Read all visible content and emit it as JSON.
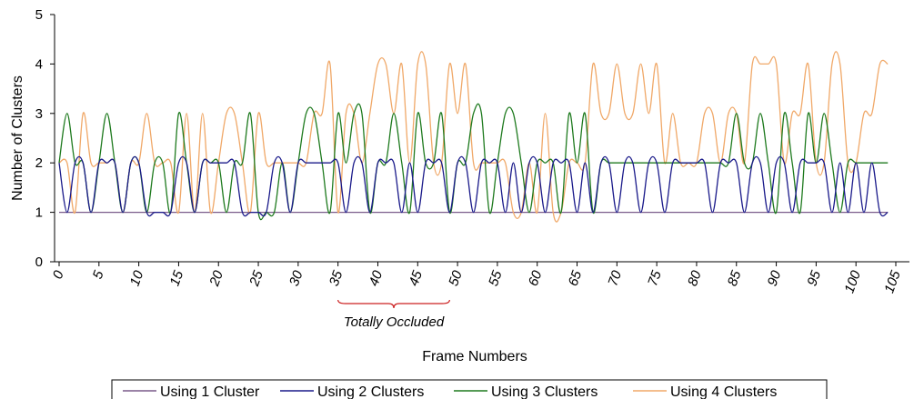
{
  "chart_data": {
    "type": "line",
    "title": "",
    "xlabel": "Frame Numbers",
    "ylabel": "Number of Clusters",
    "xlim": [
      0,
      105
    ],
    "ylim": [
      0,
      5
    ],
    "x_ticks": [
      "0",
      "5",
      "10",
      "15",
      "20",
      "25",
      "30",
      "35",
      "40",
      "45",
      "50",
      "55",
      "60",
      "65",
      "70",
      "75",
      "80",
      "85",
      "90",
      "95",
      "100",
      "105"
    ],
    "y_ticks": [
      "0",
      "1",
      "2",
      "3",
      "4",
      "5"
    ],
    "grid": false,
    "legend_position": "bottom",
    "annotation": {
      "text": "Totally Occluded",
      "x_start": 35,
      "x_end": 49
    },
    "x": [
      0,
      1,
      2,
      3,
      4,
      5,
      6,
      7,
      8,
      9,
      10,
      11,
      12,
      13,
      14,
      15,
      16,
      17,
      18,
      19,
      20,
      21,
      22,
      23,
      24,
      25,
      26,
      27,
      28,
      29,
      30,
      31,
      32,
      33,
      34,
      35,
      36,
      37,
      38,
      39,
      40,
      41,
      42,
      43,
      44,
      45,
      46,
      47,
      48,
      49,
      50,
      51,
      52,
      53,
      54,
      55,
      56,
      57,
      58,
      59,
      60,
      61,
      62,
      63,
      64,
      65,
      66,
      67,
      68,
      69,
      70,
      71,
      72,
      73,
      74,
      75,
      76,
      77,
      78,
      79,
      80,
      81,
      82,
      83,
      84,
      85,
      86,
      87,
      88,
      89,
      90,
      91,
      92,
      93,
      94,
      95,
      96,
      97,
      98,
      99,
      100,
      101,
      102,
      103,
      104
    ],
    "series": [
      {
        "name": "Using 1 Cluster",
        "color": "#7a5a8a",
        "values": [
          1,
          1,
          1,
          1,
          1,
          1,
          1,
          1,
          1,
          1,
          1,
          1,
          1,
          1,
          1,
          1,
          1,
          1,
          1,
          1,
          1,
          1,
          1,
          1,
          1,
          1,
          1,
          1,
          1,
          1,
          1,
          1,
          1,
          1,
          1,
          1,
          1,
          1,
          1,
          1,
          1,
          1,
          1,
          1,
          1,
          1,
          1,
          1,
          1,
          1,
          1,
          1,
          1,
          1,
          1,
          1,
          1,
          1,
          1,
          1,
          1,
          1,
          1,
          1,
          1,
          1,
          1,
          1,
          1,
          1,
          1,
          1,
          1,
          1,
          1,
          1,
          1,
          1,
          1,
          1,
          1,
          1,
          1,
          1,
          1,
          1,
          1,
          1,
          1,
          1,
          1,
          1,
          1,
          1,
          1,
          1,
          1,
          1,
          1,
          1,
          1,
          1,
          1,
          1,
          1
        ]
      },
      {
        "name": "Using 2 Clusters",
        "color": "#1a1a8a",
        "values": [
          2,
          1,
          2,
          2,
          1,
          2,
          2,
          2,
          1,
          2,
          2,
          1,
          1,
          1,
          1,
          2,
          2,
          1,
          2,
          2,
          2,
          2,
          2,
          1,
          1,
          1,
          1,
          2,
          2,
          1,
          2,
          2,
          2,
          2,
          2,
          2,
          1,
          2,
          2,
          1,
          2,
          2,
          2,
          1,
          2,
          1,
          2,
          2,
          2,
          1,
          2,
          2,
          1,
          2,
          2,
          2,
          1,
          2,
          1,
          2,
          2,
          1,
          2,
          2,
          2,
          1,
          2,
          1,
          2,
          2,
          1,
          2,
          2,
          1,
          2,
          2,
          1,
          2,
          2,
          2,
          2,
          2,
          1,
          2,
          2,
          2,
          1,
          2,
          2,
          1,
          2,
          2,
          1,
          2,
          2,
          2,
          2,
          1,
          2,
          1,
          2,
          1,
          2,
          1,
          1
        ]
      },
      {
        "name": "Using 3 Clusters",
        "color": "#1e7a1e",
        "values": [
          2,
          3,
          2,
          2,
          1,
          2,
          3,
          2,
          1,
          2,
          2,
          1,
          2,
          2,
          1,
          3,
          2,
          1,
          2,
          2,
          2,
          1,
          2,
          2,
          3,
          1,
          1,
          1,
          2,
          1,
          2,
          3,
          3,
          2,
          1,
          3,
          2,
          3,
          3,
          1,
          2,
          2,
          3,
          2,
          1,
          3,
          2,
          2,
          3,
          1,
          2,
          2,
          3,
          3,
          1,
          2,
          3,
          3,
          2,
          1,
          2,
          2,
          2,
          1,
          3,
          2,
          3,
          1,
          2,
          2,
          2,
          2,
          2,
          2,
          2,
          2,
          2,
          2,
          2,
          2,
          2,
          2,
          2,
          2,
          2,
          3,
          2,
          2,
          3,
          2,
          1,
          3,
          2,
          1,
          3,
          2,
          3,
          2,
          1,
          2,
          2,
          2,
          2,
          2,
          2
        ]
      },
      {
        "name": "Using 4 Clusters",
        "color": "#f0a868",
        "values": [
          2,
          2,
          1,
          3,
          2,
          2,
          2,
          2,
          1,
          2,
          2,
          3,
          2,
          2,
          2,
          1,
          3,
          1,
          3,
          1,
          2,
          3,
          3,
          2,
          1,
          3,
          2,
          2,
          2,
          2,
          2,
          2,
          3,
          3,
          4,
          1,
          3,
          3,
          2,
          3,
          4,
          4,
          3,
          4,
          2,
          4,
          4,
          2,
          2,
          4,
          3,
          4,
          2,
          2,
          2,
          2,
          2,
          1,
          1,
          2,
          1,
          3,
          1,
          1,
          2,
          2,
          2,
          4,
          3,
          3,
          4,
          3,
          3,
          4,
          3,
          4,
          2,
          3,
          2,
          2,
          2,
          3,
          3,
          2,
          3,
          3,
          2,
          4,
          4,
          4,
          4,
          2,
          3,
          3,
          4,
          2,
          2,
          4,
          4,
          2,
          2,
          3,
          3,
          4,
          4
        ]
      }
    ]
  }
}
